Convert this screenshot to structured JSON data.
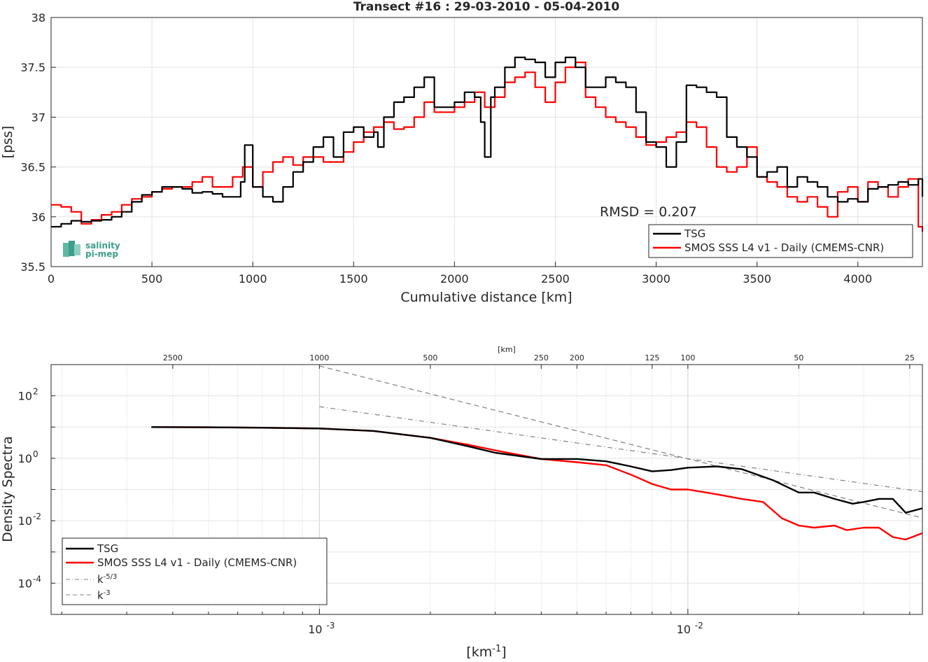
{
  "chart_data": [
    {
      "type": "line",
      "title": "Transect #16 : 29-03-2010 - 05-04-2010",
      "xlabel": "Cumulative distance [km]",
      "ylabel": "[pss]",
      "xlim": [
        0,
        4320
      ],
      "ylim": [
        35.5,
        38
      ],
      "xticks": [
        "0",
        "500",
        "1000",
        "1500",
        "2000",
        "2500",
        "3000",
        "3500",
        "4000"
      ],
      "yticks": [
        "35.5",
        "36",
        "36.5",
        "37",
        "37.5",
        "38"
      ],
      "grid": true,
      "legend_position": "bottom-right",
      "annotation": "RMSD = 0.207",
      "logo_text": [
        "salinity",
        "pi-mep"
      ],
      "series": [
        {
          "name": "TSG",
          "color": "#000000",
          "x": [
            0,
            50,
            100,
            150,
            200,
            250,
            300,
            350,
            400,
            450,
            500,
            550,
            600,
            650,
            700,
            750,
            800,
            850,
            900,
            940,
            960,
            1000,
            1050,
            1100,
            1150,
            1200,
            1250,
            1300,
            1350,
            1400,
            1450,
            1500,
            1550,
            1600,
            1620,
            1650,
            1700,
            1750,
            1800,
            1850,
            1900,
            1950,
            2000,
            2050,
            2100,
            2130,
            2150,
            2180,
            2200,
            2250,
            2300,
            2350,
            2400,
            2450,
            2500,
            2550,
            2600,
            2650,
            2700,
            2750,
            2800,
            2850,
            2900,
            2950,
            3000,
            3050,
            3100,
            3150,
            3200,
            3250,
            3300,
            3350,
            3400,
            3450,
            3500,
            3550,
            3600,
            3650,
            3700,
            3750,
            3800,
            3850,
            3900,
            3950,
            4000,
            4050,
            4100,
            4150,
            4200,
            4250,
            4300,
            4320
          ],
          "y": [
            35.9,
            35.93,
            35.96,
            35.95,
            35.96,
            35.97,
            36.0,
            36.05,
            36.15,
            36.22,
            36.25,
            36.3,
            36.3,
            36.28,
            36.24,
            36.25,
            36.23,
            36.2,
            36.2,
            36.35,
            36.72,
            36.3,
            36.2,
            36.15,
            36.3,
            36.45,
            36.55,
            36.7,
            36.8,
            36.6,
            36.85,
            36.9,
            36.8,
            36.85,
            36.7,
            37.0,
            37.15,
            37.2,
            37.3,
            37.4,
            37.1,
            37.1,
            37.15,
            37.25,
            37.2,
            36.95,
            36.6,
            37.2,
            37.3,
            37.5,
            37.6,
            37.58,
            37.55,
            37.4,
            37.55,
            37.6,
            37.5,
            37.3,
            37.3,
            37.4,
            37.35,
            37.3,
            37.05,
            36.75,
            36.7,
            36.5,
            36.75,
            37.32,
            37.3,
            37.25,
            37.2,
            36.8,
            36.7,
            36.6,
            36.4,
            36.45,
            36.5,
            36.3,
            36.4,
            36.35,
            36.3,
            36.2,
            36.15,
            36.18,
            36.15,
            36.28,
            36.3,
            36.32,
            36.35,
            36.32,
            36.38,
            36.2
          ]
        },
        {
          "name": "SMOS SSS L4 v1 - Daily (CMEMS-CNR)",
          "color": "#ff0000",
          "x": [
            0,
            50,
            100,
            150,
            200,
            250,
            300,
            350,
            400,
            450,
            500,
            550,
            600,
            650,
            700,
            750,
            800,
            850,
            900,
            950,
            1000,
            1050,
            1100,
            1150,
            1200,
            1250,
            1300,
            1350,
            1400,
            1450,
            1500,
            1550,
            1600,
            1650,
            1700,
            1750,
            1800,
            1850,
            1900,
            1950,
            2000,
            2050,
            2100,
            2150,
            2200,
            2250,
            2300,
            2350,
            2400,
            2450,
            2500,
            2550,
            2600,
            2650,
            2700,
            2750,
            2800,
            2850,
            2900,
            2950,
            3000,
            3050,
            3100,
            3150,
            3200,
            3250,
            3300,
            3350,
            3400,
            3450,
            3500,
            3550,
            3600,
            3650,
            3700,
            3750,
            3800,
            3850,
            3900,
            3950,
            4000,
            4050,
            4100,
            4150,
            4200,
            4250,
            4300,
            4320
          ],
          "y": [
            36.12,
            36.1,
            36.05,
            35.93,
            35.97,
            36.02,
            36.05,
            36.12,
            36.18,
            36.2,
            36.25,
            36.28,
            36.3,
            36.3,
            36.35,
            36.4,
            36.3,
            36.3,
            36.4,
            36.5,
            36.3,
            36.45,
            36.55,
            36.6,
            36.52,
            36.6,
            36.6,
            36.55,
            36.55,
            36.65,
            36.75,
            36.85,
            36.9,
            36.95,
            36.88,
            36.9,
            37.0,
            37.15,
            37.05,
            37.05,
            37.1,
            37.15,
            37.25,
            37.1,
            37.2,
            37.35,
            37.4,
            37.45,
            37.3,
            37.15,
            37.35,
            37.5,
            37.55,
            37.2,
            37.1,
            37.0,
            36.95,
            36.9,
            36.8,
            36.72,
            36.75,
            36.8,
            36.85,
            36.95,
            36.9,
            36.7,
            36.5,
            36.45,
            36.5,
            36.7,
            36.4,
            36.35,
            36.3,
            36.2,
            36.15,
            36.2,
            36.1,
            36.0,
            36.25,
            36.3,
            36.15,
            36.35,
            36.3,
            36.2,
            36.3,
            36.38,
            35.9,
            35.85
          ]
        }
      ]
    },
    {
      "type": "line",
      "title": "",
      "xlabel": "[km-1]",
      "ylabel": "Density Spectra",
      "top_axis_label": "[km]",
      "x_scale": "log",
      "y_scale": "log",
      "xlim": [
        0.000187,
        0.0433
      ],
      "ylim": [
        1e-05,
        1000
      ],
      "xticks": [
        "10-3",
        "10-2"
      ],
      "yticks": [
        "10-4",
        "10-2",
        "100",
        "102"
      ],
      "top_ticks": [
        "2500",
        "1000",
        "500",
        "250",
        "200",
        "125",
        "100",
        "50",
        "25"
      ],
      "grid": true,
      "legend_position": "bottom-left",
      "series": [
        {
          "name": "TSG",
          "color": "#000000",
          "x": [
            0.00035,
            0.0005,
            0.0007,
            0.001,
            0.0014,
            0.002,
            0.0025,
            0.003,
            0.004,
            0.005,
            0.006,
            0.007,
            0.008,
            0.009,
            0.01,
            0.012,
            0.014,
            0.017,
            0.02,
            0.022,
            0.025,
            0.028,
            0.03,
            0.033,
            0.036,
            0.039,
            0.0433
          ],
          "y": [
            10,
            9.8,
            9.5,
            9,
            7.5,
            4.5,
            2.5,
            1.5,
            0.95,
            0.95,
            0.8,
            0.55,
            0.38,
            0.42,
            0.5,
            0.55,
            0.45,
            0.2,
            0.08,
            0.08,
            0.05,
            0.035,
            0.04,
            0.05,
            0.05,
            0.018,
            0.025
          ]
        },
        {
          "name": "SMOS SSS L4 v1 - Daily (CMEMS-CNR)",
          "color": "#ff0000",
          "x": [
            0.00035,
            0.0005,
            0.0007,
            0.001,
            0.0014,
            0.002,
            0.0025,
            0.003,
            0.004,
            0.005,
            0.006,
            0.007,
            0.008,
            0.009,
            0.01,
            0.012,
            0.014,
            0.016,
            0.018,
            0.02,
            0.022,
            0.025,
            0.027,
            0.03,
            0.033,
            0.036,
            0.039,
            0.0433
          ],
          "y": [
            10,
            9.8,
            9.5,
            9,
            7.5,
            4.5,
            2.8,
            1.8,
            0.95,
            0.75,
            0.6,
            0.3,
            0.15,
            0.1,
            0.1,
            0.07,
            0.05,
            0.04,
            0.012,
            0.007,
            0.006,
            0.007,
            0.005,
            0.006,
            0.006,
            0.003,
            0.0025,
            0.004
          ]
        },
        {
          "name": "k-5/3",
          "color": "#808080",
          "dash": "dashdot",
          "x": [
            0.001,
            0.0433
          ],
          "y": [
            45,
            0.085
          ]
        },
        {
          "name": "k-3",
          "color": "#808080",
          "dash": "dashed",
          "x": [
            0.001,
            0.0433
          ],
          "y": [
            900,
            0.0123
          ]
        }
      ]
    }
  ]
}
